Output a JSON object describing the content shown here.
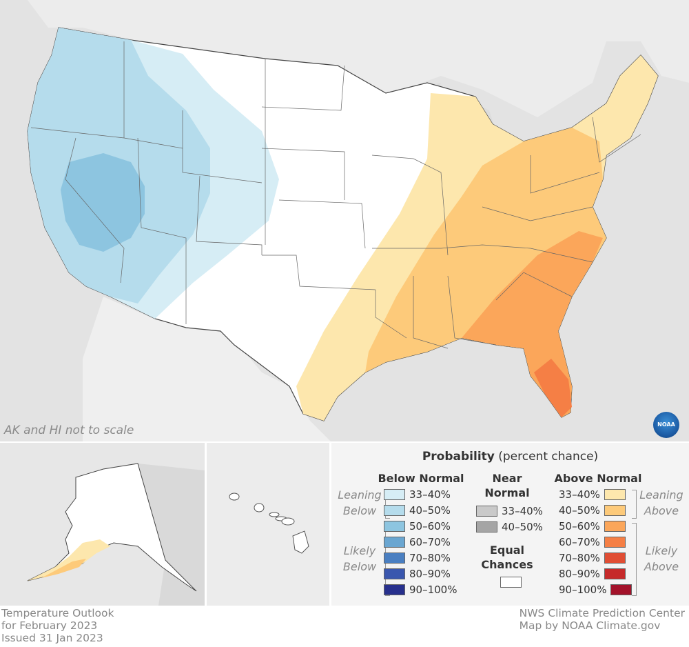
{
  "map": {
    "scale_note": "AK and HI not to scale",
    "logo_text": "NOAA"
  },
  "title_block": {
    "line1": "Temperature Outlook",
    "line2": "for February 2023",
    "line3": "Issued 31 Jan 2023"
  },
  "credit_block": {
    "line1": "NWS Climate Prediction Center",
    "line2": "Map by NOAA Climate.gov"
  },
  "legend": {
    "title_bold": "Probability",
    "title_rest": " (percent chance)",
    "below": {
      "heading": "Below Normal",
      "leaning_label_1": "Leaning",
      "leaning_label_2": "Below",
      "likely_label_1": "Likely",
      "likely_label_2": "Below",
      "bins": [
        {
          "label": "33–40%",
          "color": "#d6edf5"
        },
        {
          "label": "40–50%",
          "color": "#b5dcec"
        },
        {
          "label": "50–60%",
          "color": "#8dc5e0"
        },
        {
          "label": "60–70%",
          "color": "#6aa6d1"
        },
        {
          "label": "70–80%",
          "color": "#4a7fc1"
        },
        {
          "label": "80–90%",
          "color": "#3a57ae"
        },
        {
          "label": "90–100%",
          "color": "#27308d"
        }
      ]
    },
    "near": {
      "heading_1": "Near",
      "heading_2": "Normal",
      "bins": [
        {
          "label": "33–40%",
          "color": "#c9c9c9"
        },
        {
          "label": "40–50%",
          "color": "#a5a5a5"
        }
      ],
      "equal_1": "Equal",
      "equal_2": "Chances",
      "equal_color": "#ffffff"
    },
    "above": {
      "heading": "Above Normal",
      "leaning_label_1": "Leaning",
      "leaning_label_2": "Above",
      "likely_label_1": "Likely",
      "likely_label_2": "Above",
      "bins": [
        {
          "label": "33–40%",
          "color": "#fde7ad"
        },
        {
          "label": "40–50%",
          "color": "#fdca7a"
        },
        {
          "label": "50–60%",
          "color": "#fba65a"
        },
        {
          "label": "60–70%",
          "color": "#f57f45"
        },
        {
          "label": "70–80%",
          "color": "#e04e34"
        },
        {
          "label": "80–90%",
          "color": "#c62a2a"
        },
        {
          "label": "90–100%",
          "color": "#a3122a"
        }
      ]
    }
  }
}
